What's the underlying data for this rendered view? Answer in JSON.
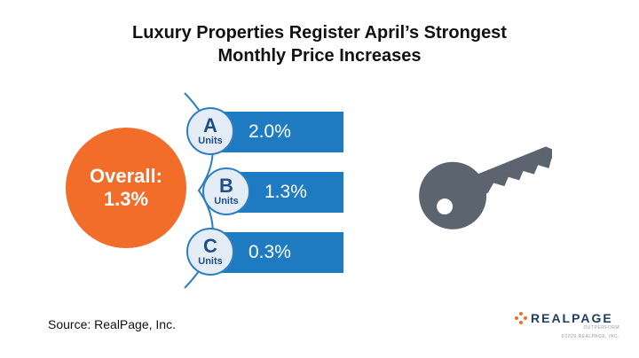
{
  "title": {
    "line1": "Luxury Properties Register April’s Strongest",
    "line2": "Monthly Price Increases"
  },
  "overall": {
    "label": "Overall:",
    "value": "1.3%"
  },
  "units": [
    {
      "letter": "A",
      "label": "Units",
      "value": "2.0%"
    },
    {
      "letter": "B",
      "label": "Units",
      "value": "1.3%"
    },
    {
      "letter": "C",
      "label": "Units",
      "value": "0.3%"
    }
  ],
  "source": "Source: RealPage, Inc.",
  "logo": {
    "name": "REALPAGE",
    "tagline": "OUTPERFORM",
    "copyright": "©2020 REALPAGE, INC."
  },
  "colors": {
    "overall": "#f26c2a",
    "bar": "#1f7bc1",
    "unit_circle": "#e4edf5",
    "unit_border": "#2d7fc0",
    "key": "#5c6470"
  },
  "icons": [
    "key-icon"
  ]
}
